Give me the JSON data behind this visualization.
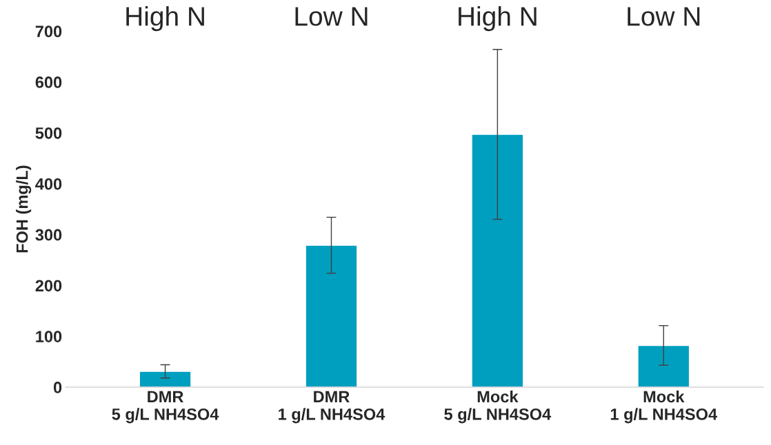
{
  "chart_data": {
    "type": "bar",
    "ylabel": "FOH (mg/L)",
    "categories": [
      "DMR\n5 g/L NH4SO4",
      "DMR\n1 g/L NH4SO4",
      "Mock\n5 g/L NH4SO4",
      "Mock\n1 g/L NH4SO4"
    ],
    "series": [
      {
        "color": "#009fbf",
        "values": [
          31,
          279,
          497,
          82
        ],
        "errors": [
          13,
          55,
          167,
          39
        ]
      }
    ],
    "ylim": [
      0,
      700
    ],
    "yticks": [
      0,
      100,
      200,
      300,
      400,
      500,
      600,
      700
    ],
    "grid": false,
    "legend": false,
    "annotations": [
      "High N",
      "Low N",
      "High N",
      "Low N"
    ]
  }
}
